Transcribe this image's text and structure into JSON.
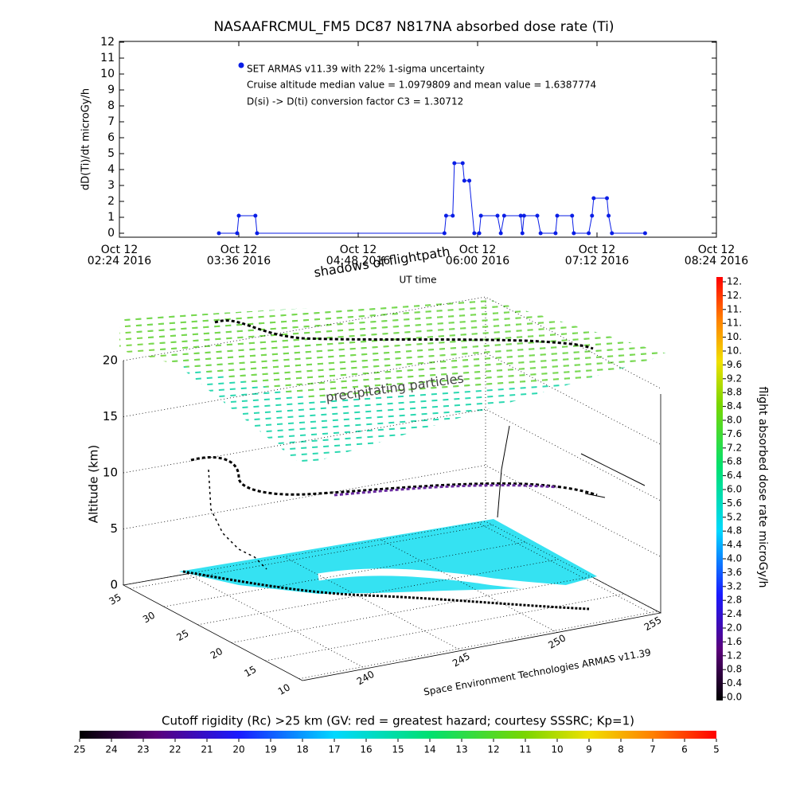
{
  "chart_data": [
    {
      "type": "line",
      "title": "NASAAFRCMUL_FM5 DC87 N817NA absorbed dose rate (Ti)",
      "x_label": "UT time",
      "y_label": "dD(Ti)/dt microGy/h",
      "annotations": [
        "Cruise altitude median value = 1.0979809 and mean value = 1.6387774",
        "D(si) -> D(ti) conversion factor C3 = 1.30712"
      ],
      "x": [
        "2016-10-12T03:24",
        "2016-10-12T03:35",
        "2016-10-12T03:36",
        "2016-10-12T03:46",
        "2016-10-12T03:47",
        "2016-10-12T05:40",
        "2016-10-12T05:41",
        "2016-10-12T05:45",
        "2016-10-12T05:46",
        "2016-10-12T05:51",
        "2016-10-12T05:52",
        "2016-10-12T05:55",
        "2016-10-12T05:58",
        "2016-10-12T06:01",
        "2016-10-12T06:02",
        "2016-10-12T06:12",
        "2016-10-12T06:14",
        "2016-10-12T06:16",
        "2016-10-12T06:26",
        "2016-10-12T06:27",
        "2016-10-12T06:28",
        "2016-10-12T06:36",
        "2016-10-12T06:38",
        "2016-10-12T06:47",
        "2016-10-12T06:48",
        "2016-10-12T06:57",
        "2016-10-12T06:58",
        "2016-10-12T07:07",
        "2016-10-12T07:09",
        "2016-10-12T07:10",
        "2016-10-12T07:18",
        "2016-10-12T07:19",
        "2016-10-12T07:21",
        "2016-10-12T07:41"
      ],
      "series": [
        {
          "name": "SET ARMAS v11.39 with 22% 1-sigma uncertainty",
          "color": "#0a1ee6",
          "values": [
            0,
            0,
            1.1,
            1.1,
            0,
            0,
            1.1,
            1.1,
            4.4,
            4.4,
            3.3,
            3.3,
            0,
            0,
            1.1,
            1.1,
            0,
            1.1,
            1.1,
            0,
            1.1,
            1.1,
            0,
            0,
            1.1,
            1.1,
            0,
            0,
            1.1,
            2.2,
            2.2,
            1.1,
            0,
            0
          ]
        }
      ],
      "xlim": [
        "2016-10-12T02:24",
        "2016-10-12T08:24"
      ],
      "xticks": [
        {
          "value": "2016-10-12T02:24",
          "label": [
            "Oct 12",
            "02:24 2016"
          ]
        },
        {
          "value": "2016-10-12T03:36",
          "label": [
            "Oct 12",
            "03:36 2016"
          ]
        },
        {
          "value": "2016-10-12T04:48",
          "label": [
            "Oct 12",
            "04:48 2016"
          ]
        },
        {
          "value": "2016-10-12T06:00",
          "label": [
            "Oct 12",
            "06:00 2016"
          ]
        },
        {
          "value": "2016-10-12T07:12",
          "label": [
            "Oct 12",
            "07:12 2016"
          ]
        },
        {
          "value": "2016-10-12T08:24",
          "label": [
            "Oct 12",
            "08:24 2016"
          ]
        }
      ],
      "ylim": [
        -0.25,
        12.05
      ],
      "yticks": [
        0,
        1,
        2,
        3,
        4,
        5,
        6,
        7,
        8,
        9,
        10,
        11,
        12
      ]
    },
    {
      "type": "surface3d",
      "annotations": [
        "shadows of flightpath",
        "precipitating particles"
      ],
      "z_label": "Altitude (km)",
      "footer": "Space Environment Technologies ARMAS v11.39",
      "zlim": [
        0,
        20
      ],
      "zticks": [
        0,
        5,
        10,
        15,
        20
      ],
      "xlim": [
        36,
        9.5
      ],
      "xticks": [
        35,
        30,
        25,
        20,
        15,
        10
      ],
      "ylim": [
        236.7,
        255.4
      ],
      "yticks": [
        240,
        245,
        250,
        255
      ]
    },
    {
      "type": "colorbar",
      "orientation": "vertical",
      "label": "flight absorbed dose rate microGy/h",
      "lim": [
        0,
        12
      ],
      "ticks": [
        {
          "value": 0,
          "label": "0.0"
        },
        0.4,
        0.8,
        1.2,
        1.6,
        {
          "value": 2,
          "label": "2.0"
        },
        2.4,
        2.8,
        3.2,
        3.6,
        {
          "value": 4,
          "label": "4.0"
        },
        4.4,
        4.8,
        5.2,
        5.6,
        {
          "value": 6,
          "label": "6.0"
        },
        6.4,
        6.8,
        7.2,
        7.6,
        {
          "value": 8,
          "label": "8.0"
        },
        8.4,
        8.8,
        9.2,
        9.6,
        {
          "value": 10,
          "label": "10."
        },
        {
          "value": 10.4,
          "label": "10."
        },
        {
          "value": 10.8,
          "label": "11."
        },
        {
          "value": 11.2,
          "label": "11."
        },
        {
          "value": 11.6,
          "label": "12."
        },
        {
          "value": 12,
          "label": "12."
        }
      ]
    },
    {
      "type": "colorbar",
      "orientation": "horizontal",
      "label": "Cutoff rigidity (Rc) >25 km (GV: red = greatest hazard; courtesy SSSRC; Kp=1)",
      "lim": [
        25,
        5
      ],
      "ticks": [
        25,
        24,
        23,
        22,
        21,
        20,
        19,
        18,
        17,
        16,
        15,
        14,
        13,
        12,
        11,
        10,
        9,
        8,
        7,
        6,
        5
      ]
    }
  ]
}
